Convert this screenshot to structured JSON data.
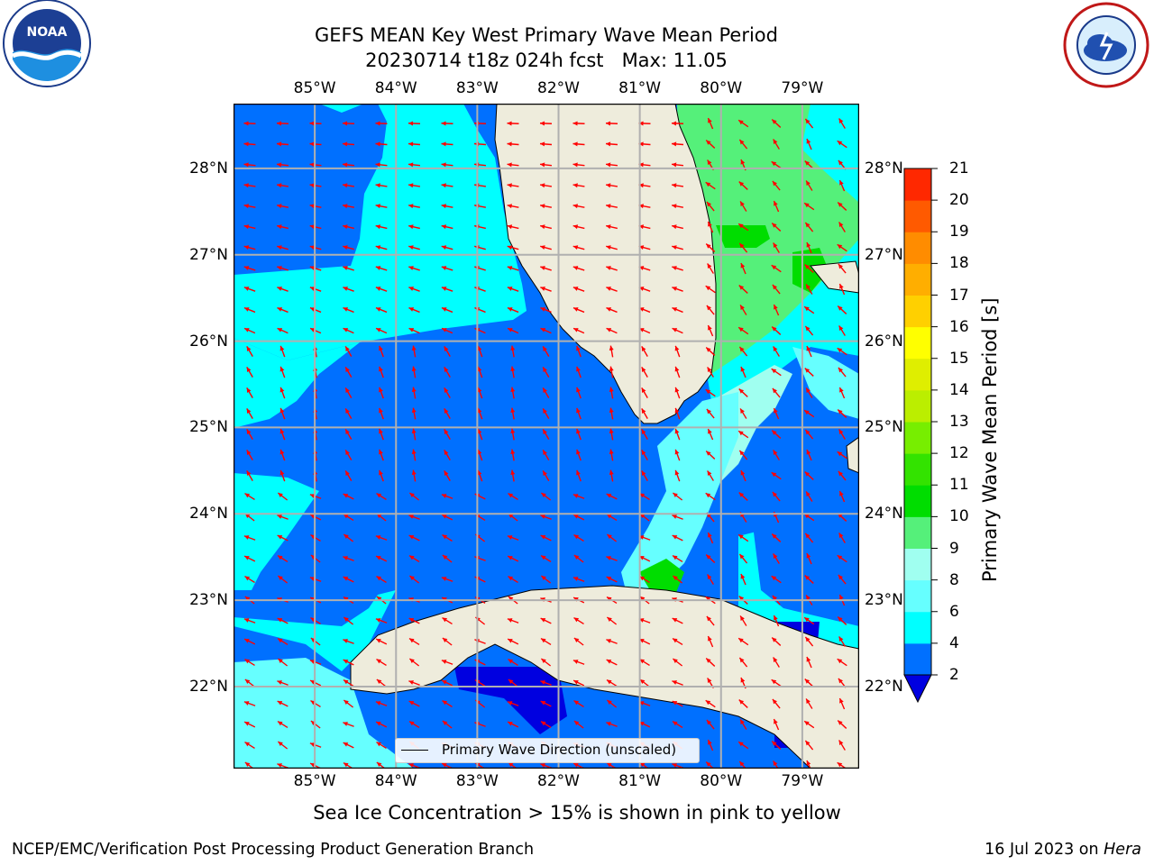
{
  "header": {
    "title_line1": "GEFS MEAN Key West Primary Wave Mean Period",
    "title_line2": "20230714 t18z 024h fcst   Max: 11.05"
  },
  "logos": {
    "left": "noaa-logo",
    "right": "national-weather-service-logo",
    "left_text": "NOAA",
    "left_ring_text": "NATIONAL OCEANIC AND ATMOSPHERIC ADMINISTRATION · U.S. DEPARTMENT OF COMMERCE",
    "right_ring_text": "NATIONAL WEATHER SERVICE"
  },
  "map": {
    "lon_labels": [
      "85°W",
      "84°W",
      "83°W",
      "82°W",
      "81°W",
      "80°W",
      "79°W"
    ],
    "lat_labels": [
      "28°N",
      "27°N",
      "26°N",
      "25°N",
      "24°N",
      "23°N",
      "22°N"
    ],
    "lon_range": [
      -86.0,
      -78.3
    ],
    "lat_range": [
      21.05,
      28.75
    ],
    "gridlines": true,
    "arrow_color": "#ff0000",
    "land_color": "#eeecdc",
    "legend": {
      "label": "Primary Wave Direction (unscaled)",
      "position": "bottom-center"
    }
  },
  "colorbar": {
    "label": "Primary Wave Mean Period [s]",
    "ticks": [
      "21",
      "20",
      "19",
      "18",
      "17",
      "16",
      "15",
      "14",
      "13",
      "12",
      "11",
      "10",
      "9",
      "8",
      "6",
      "4",
      "2"
    ],
    "colors": [
      "#0000e0",
      "#0070ff",
      "#00ffff",
      "#66ffff",
      "#a0fff0",
      "#55f07a",
      "#00dd00",
      "#33e300",
      "#77ee00",
      "#bbee00",
      "#dfee00",
      "#ffff00",
      "#ffd000",
      "#ffae00",
      "#ff8c00",
      "#ff5a00",
      "#ff2800",
      "#ff0000"
    ]
  },
  "chart_data": {
    "type": "heatmap",
    "title": "GEFS MEAN Key West Primary Wave Mean Period",
    "subtitle": "20230714 t18z 024h fcst   Max: 11.05",
    "variable": "Primary Wave Mean Period",
    "units": "s",
    "max": 11.05,
    "colorbar_levels": [
      2,
      4,
      6,
      8,
      9,
      10,
      11,
      12,
      13,
      14,
      15,
      16,
      17,
      18,
      19,
      20,
      21
    ],
    "x_range_lon": [
      -86.0,
      -78.3
    ],
    "y_range_lat": [
      21.05,
      28.75
    ]
  },
  "notes": {
    "sea_ice": "Sea Ice Concentration > 15% is shown in pink to yellow"
  },
  "footer": {
    "left": "NCEP/EMC/Verification Post Processing Product Generation Branch",
    "right_date": "16 Jul 2023 on ",
    "right_host": "Hera"
  }
}
